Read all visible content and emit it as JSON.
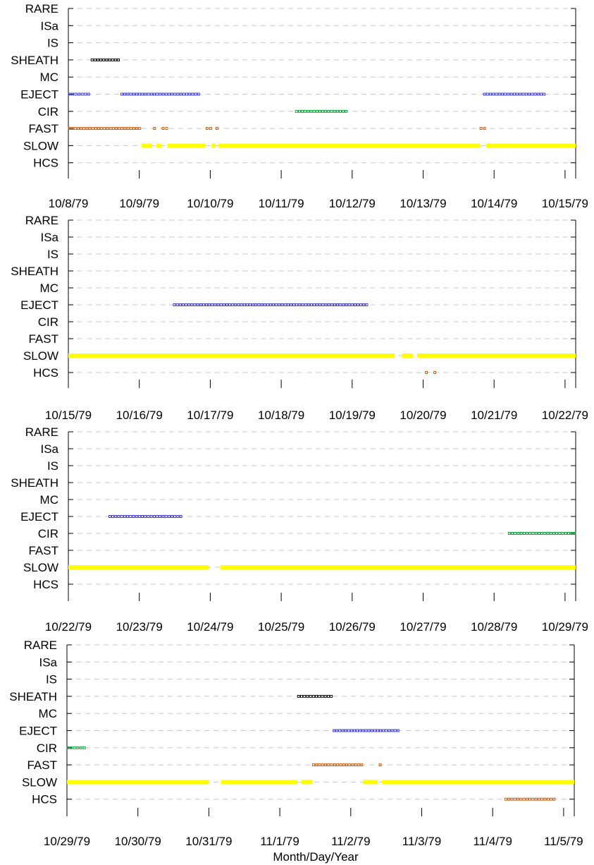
{
  "chart_data": [
    {
      "type": "timeline",
      "categories": [
        "RARE",
        "ISa",
        "IS",
        "SHEATH",
        "MC",
        "EJECT",
        "CIR",
        "FAST",
        "SLOW",
        "HCS"
      ],
      "x_tick_labels": [
        "10/8/79",
        "10/9/79",
        "10/10/79",
        "10/11/79",
        "10/12/79",
        "10/13/79",
        "10/14/79",
        "10/15/79"
      ],
      "xlim_days": [
        0,
        7.15
      ],
      "series": [
        {
          "category": "SHEATH",
          "color": "#000000",
          "style": "squares",
          "intervals": [
            [
              0.32,
              0.72
            ]
          ]
        },
        {
          "category": "EJECT",
          "color": "#3333cc",
          "style": "squares",
          "intervals": [
            [
              0.0,
              0.3
            ],
            [
              0.74,
              1.85
            ],
            [
              5.85,
              6.72
            ]
          ]
        },
        {
          "category": "CIR",
          "color": "#009933",
          "style": "squares",
          "intervals": [
            [
              3.2,
              3.93
            ]
          ]
        },
        {
          "category": "FAST",
          "color": "#cc5500",
          "style": "squares",
          "intervals": [
            [
              0.0,
              1.02
            ],
            [
              1.2,
              1.24
            ],
            [
              1.32,
              1.4
            ],
            [
              1.94,
              2.02
            ],
            [
              2.08,
              2.11
            ],
            [
              5.8,
              5.88
            ]
          ]
        },
        {
          "category": "SLOW",
          "color": "#ffff00",
          "style": "bar",
          "intervals": [
            [
              1.03,
              1.18
            ],
            [
              1.24,
              1.31
            ],
            [
              1.4,
              1.93
            ],
            [
              2.02,
              2.07
            ],
            [
              2.11,
              5.8
            ],
            [
              5.89,
              7.15
            ]
          ]
        }
      ]
    },
    {
      "type": "timeline",
      "categories": [
        "RARE",
        "ISa",
        "IS",
        "SHEATH",
        "MC",
        "EJECT",
        "CIR",
        "FAST",
        "SLOW",
        "HCS"
      ],
      "x_tick_labels": [
        "10/15/79",
        "10/16/79",
        "10/17/79",
        "10/18/79",
        "10/19/79",
        "10/20/79",
        "10/21/79",
        "10/22/79"
      ],
      "xlim_days": [
        0,
        7.15
      ],
      "series": [
        {
          "category": "EJECT",
          "color": "#3333cc",
          "style": "squares",
          "intervals": [
            [
              1.48,
              4.22
            ]
          ]
        },
        {
          "category": "SLOW",
          "color": "#ffff00",
          "style": "bar",
          "intervals": [
            [
              0.0,
              4.6
            ],
            [
              4.7,
              4.86
            ],
            [
              4.92,
              7.15
            ]
          ]
        },
        {
          "category": "HCS",
          "color": "#cc5500",
          "style": "squares",
          "intervals": [
            [
              5.03,
              5.07
            ],
            [
              5.15,
              5.19
            ]
          ]
        }
      ]
    },
    {
      "type": "timeline",
      "categories": [
        "RARE",
        "ISa",
        "IS",
        "SHEATH",
        "MC",
        "EJECT",
        "CIR",
        "FAST",
        "SLOW",
        "HCS"
      ],
      "x_tick_labels": [
        "10/22/79",
        "10/23/79",
        "10/24/79",
        "10/25/79",
        "10/26/79",
        "10/27/79",
        "10/28/79",
        "10/29/79"
      ],
      "xlim_days": [
        0,
        7.15
      ],
      "series": [
        {
          "category": "EJECT",
          "color": "#3333cc",
          "style": "squares",
          "intervals": [
            [
              0.57,
              1.6
            ]
          ]
        },
        {
          "category": "CIR",
          "color": "#009933",
          "style": "squares",
          "intervals": [
            [
              6.2,
              7.15
            ]
          ]
        },
        {
          "category": "SLOW",
          "color": "#ffff00",
          "style": "bar",
          "intervals": [
            [
              0.0,
              1.98
            ],
            [
              2.14,
              7.15
            ]
          ]
        }
      ]
    },
    {
      "type": "timeline",
      "categories": [
        "RARE",
        "ISa",
        "IS",
        "SHEATH",
        "MC",
        "EJECT",
        "CIR",
        "FAST",
        "SLOW",
        "HCS"
      ],
      "x_tick_labels": [
        "10/29/79",
        "10/30/79",
        "10/31/79",
        "11/1/79",
        "11/2/79",
        "11/3/79",
        "11/4/79",
        "11/5/79"
      ],
      "xlim_days": [
        0,
        7.15
      ],
      "xlabel": "Month/Day/Year",
      "series": [
        {
          "category": "SHEATH",
          "color": "#000000",
          "style": "squares",
          "intervals": [
            [
              3.25,
              3.74
            ]
          ]
        },
        {
          "category": "EJECT",
          "color": "#3333cc",
          "style": "squares",
          "intervals": [
            [
              3.75,
              4.68
            ]
          ]
        },
        {
          "category": "CIR",
          "color": "#009933",
          "style": "squares",
          "intervals": [
            [
              0.0,
              0.26
            ]
          ]
        },
        {
          "category": "FAST",
          "color": "#cc5500",
          "style": "squares",
          "intervals": [
            [
              3.46,
              4.17
            ],
            [
              4.4,
              4.44
            ]
          ]
        },
        {
          "category": "SLOW",
          "color": "#ffff00",
          "style": "bar",
          "intervals": [
            [
              0.0,
              2.0
            ],
            [
              2.17,
              3.25
            ],
            [
              3.3,
              3.46
            ],
            [
              4.17,
              4.38
            ],
            [
              4.44,
              7.15
            ]
          ]
        },
        {
          "category": "HCS",
          "color": "#cc5500",
          "style": "squares",
          "intervals": [
            [
              6.17,
              6.88
            ]
          ]
        }
      ]
    }
  ]
}
